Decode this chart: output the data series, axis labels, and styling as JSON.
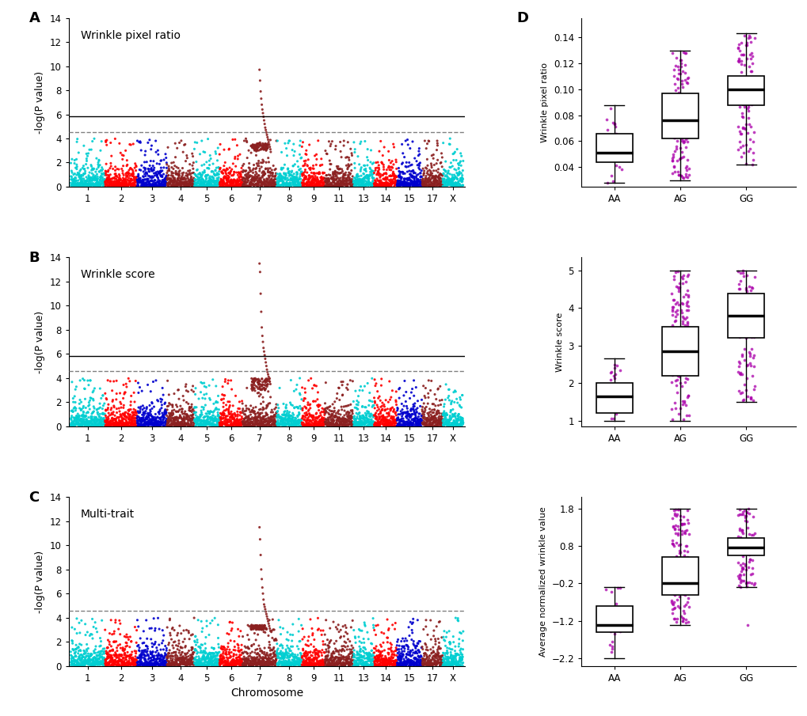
{
  "panel_labels": [
    "A",
    "B",
    "C",
    "D"
  ],
  "manhattan_titles": [
    "Wrinkle pixel ratio",
    "Wrinkle score",
    "Multi-trait"
  ],
  "ylabel_manhattan": "-log(P value)",
  "xlabel_manhattan": "Chromosome",
  "ylim_manhattan": [
    0,
    14
  ],
  "yticks_manhattan": [
    0,
    2,
    4,
    6,
    8,
    10,
    12,
    14
  ],
  "suggestive_line": 4.556,
  "genome_line": 5.857,
  "chromosomes": [
    1,
    2,
    3,
    4,
    5,
    6,
    7,
    8,
    9,
    11,
    13,
    14,
    15,
    17,
    "X"
  ],
  "chr_sizes": [
    300,
    280,
    260,
    240,
    220,
    200,
    300,
    220,
    200,
    250,
    180,
    200,
    220,
    180,
    180
  ],
  "chr_colors": [
    "#00CED1",
    "#FF0000",
    "#0000CD",
    "#8B2020",
    "#00CED1",
    "#FF0000",
    "#8B2020",
    "#00CED1",
    "#FF0000",
    "#8B2020",
    "#00CED1",
    "#FF0000",
    "#0000CD",
    "#8B2020",
    "#00CED1"
  ],
  "peak_chr_idx": 6,
  "peak_values_A": [
    9.7,
    8.8,
    7.9,
    7.3,
    6.8,
    6.4,
    6.1,
    5.8,
    5.5,
    5.2,
    4.9,
    4.7,
    4.5,
    4.3,
    4.1,
    3.9,
    3.7,
    3.5,
    3.3,
    3.1
  ],
  "peak_values_B": [
    13.5,
    12.8,
    11.0,
    9.5,
    8.2,
    7.5,
    7.0,
    6.5,
    6.2,
    5.9,
    5.6,
    5.3,
    5.0,
    4.7,
    4.5,
    4.3,
    4.1,
    3.9,
    3.7,
    3.5
  ],
  "peak_values_C": [
    11.5,
    10.5,
    9.2,
    8.0,
    7.2,
    6.5,
    6.0,
    5.5,
    5.1,
    4.9,
    4.7,
    4.5,
    4.3,
    4.1,
    3.9,
    3.7,
    3.5,
    3.3,
    3.1,
    2.9
  ],
  "boxplot_ylabels": [
    "Wrinkle pixel ratio",
    "Wrinkle score",
    "Average normalized wrinkle value"
  ],
  "boxplot_genotypes": [
    "AA",
    "AG",
    "GG"
  ],
  "jitter_color": "#AA00AA",
  "bp1_AA": {
    "whislo": 0.028,
    "q1": 0.044,
    "med": 0.051,
    "q3": 0.066,
    "whishi": 0.088
  },
  "bp1_AG": {
    "whislo": 0.03,
    "q1": 0.062,
    "med": 0.076,
    "q3": 0.097,
    "whishi": 0.13
  },
  "bp1_GG": {
    "whislo": 0.042,
    "q1": 0.088,
    "med": 0.1,
    "q3": 0.11,
    "whishi": 0.143
  },
  "bp1_ylim": [
    0.025,
    0.155
  ],
  "bp1_yticks": [
    0.04,
    0.06,
    0.08,
    0.1,
    0.12,
    0.14
  ],
  "bp2_AA": {
    "whislo": 1.0,
    "q1": 1.2,
    "med": 1.65,
    "q3": 2.0,
    "whishi": 2.65
  },
  "bp2_AG": {
    "whislo": 1.0,
    "q1": 2.2,
    "med": 2.85,
    "q3": 3.5,
    "whishi": 5.0
  },
  "bp2_GG": {
    "whislo": 1.5,
    "q1": 3.2,
    "med": 3.8,
    "q3": 4.4,
    "whishi": 5.0
  },
  "bp2_ylim": [
    0.85,
    5.35
  ],
  "bp2_yticks": [
    1,
    2,
    3,
    4,
    5
  ],
  "bp3_AA": {
    "whislo": -2.2,
    "q1": -1.5,
    "med": -1.3,
    "q3": -0.8,
    "whishi": -0.3
  },
  "bp3_AG": {
    "whislo": -1.3,
    "q1": -0.5,
    "med": -0.2,
    "q3": 0.5,
    "whishi": 1.8
  },
  "bp3_GG": {
    "whislo": -0.3,
    "q1": 0.55,
    "med": 0.75,
    "q3": 1.0,
    "whishi": 1.8
  },
  "bp3_GG_outlier": -1.3,
  "bp3_ylim": [
    -2.4,
    2.1
  ],
  "bp3_yticks": [
    -2.2,
    -1.2,
    -0.2,
    0.8,
    1.8
  ],
  "background_color": "white"
}
